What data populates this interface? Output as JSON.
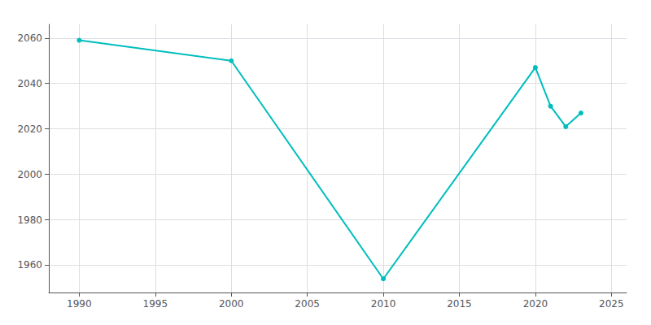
{
  "chart_data": {
    "type": "line",
    "x": [
      1990,
      2000,
      2010,
      2020,
      2021,
      2022,
      2023
    ],
    "values": [
      2059,
      2050,
      1954,
      2047,
      2030,
      2021,
      2027
    ],
    "color": "#00BDBD",
    "marker": "circle",
    "xlim": [
      1988,
      2026
    ],
    "ylim": [
      1948,
      2066
    ],
    "xticks": [
      1990,
      1995,
      2000,
      2005,
      2010,
      2015,
      2020,
      2025
    ],
    "yticks": [
      1960,
      1980,
      2000,
      2020,
      2040,
      2060
    ],
    "grid": true
  }
}
